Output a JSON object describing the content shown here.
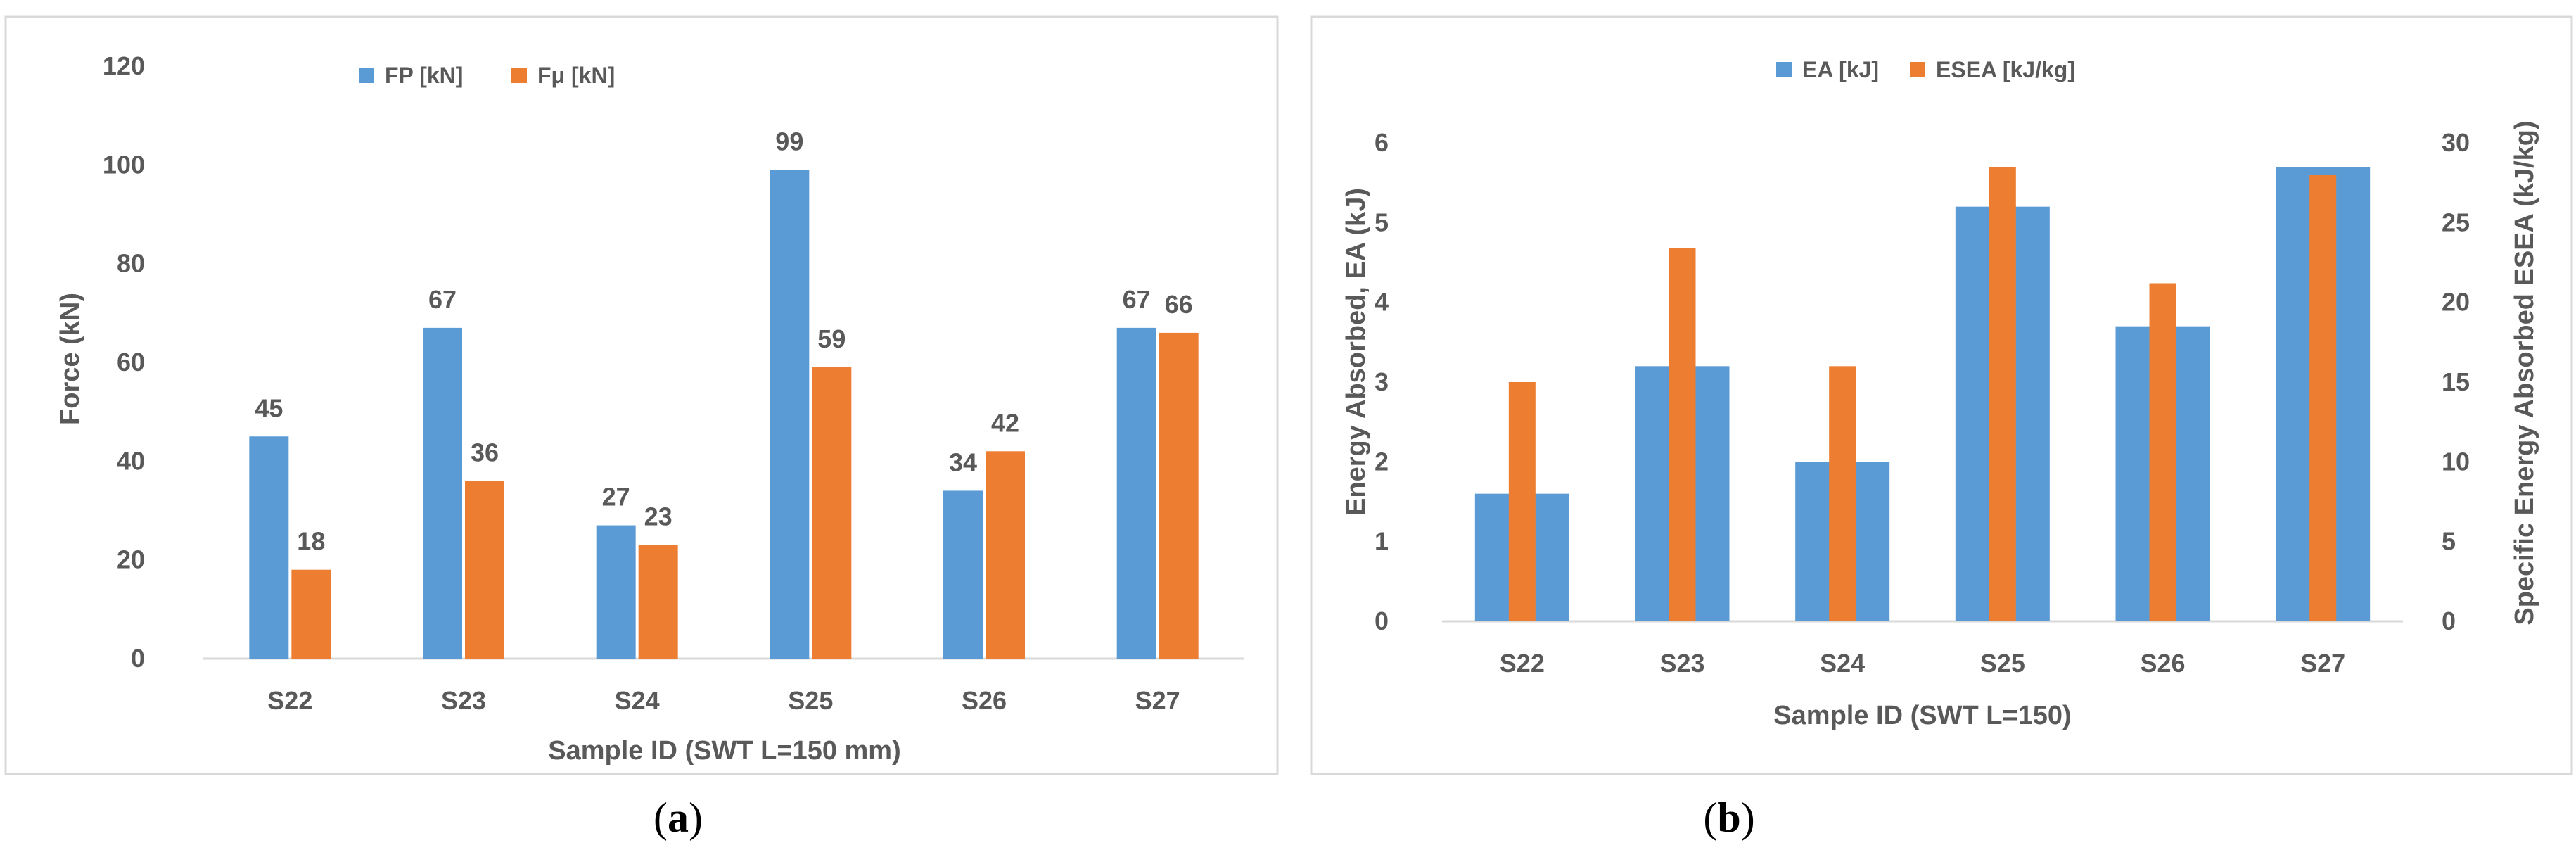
{
  "chart_data": [
    {
      "type": "bar",
      "panel_label_prefix": "(",
      "panel_label_letter": "a",
      "panel_label_suffix": ")",
      "categories": [
        "S22",
        "S23",
        "S24",
        "S25",
        "S26",
        "S27"
      ],
      "series": [
        {
          "name": "FP [kN]",
          "values": [
            45,
            67,
            27,
            99,
            34,
            67
          ],
          "color": "#5b9bd5"
        },
        {
          "name": "Fμ [kN]",
          "values": [
            18,
            36,
            23,
            59,
            42,
            66
          ],
          "color": "#ed7d31"
        }
      ],
      "data_labels": true,
      "title": "",
      "xlabel": "Sample ID (SWT L=150 mm)",
      "ylabel": "Force (kN)",
      "ylim": [
        0,
        120
      ],
      "yticks": [
        0,
        20,
        40,
        60,
        80,
        100,
        120
      ],
      "grid": false,
      "legend": "top-center"
    },
    {
      "type": "bar",
      "panel_label_prefix": "(",
      "panel_label_letter": "b",
      "panel_label_suffix": ")",
      "categories": [
        "S22",
        "S23",
        "S24",
        "S25",
        "S26",
        "S27"
      ],
      "series": [
        {
          "name": "EA [kJ]",
          "values": [
            1.6,
            3.2,
            2.0,
            5.2,
            3.7,
            5.7
          ],
          "color": "#5b9bd5",
          "axis": "left"
        },
        {
          "name": "ESEA [kJ/kg]",
          "values": [
            15,
            23.4,
            16,
            28.5,
            21.2,
            28
          ],
          "color": "#ed7d31",
          "axis": "right"
        }
      ],
      "title": "",
      "xlabel": "Sample ID (SWT L=150)",
      "ylabel": "Energy Absorbed, EA (kJ)",
      "ylabel_right": "Specific Energy Absorbed ESEA (kJ/kg)",
      "ylim": [
        0,
        6
      ],
      "yticks": [
        0,
        1,
        2,
        3,
        4,
        5,
        6
      ],
      "ylim_right": [
        0,
        30
      ],
      "yticks_right": [
        0,
        5,
        10,
        15,
        20,
        25,
        30
      ],
      "grid": false,
      "legend": "top-center"
    }
  ]
}
